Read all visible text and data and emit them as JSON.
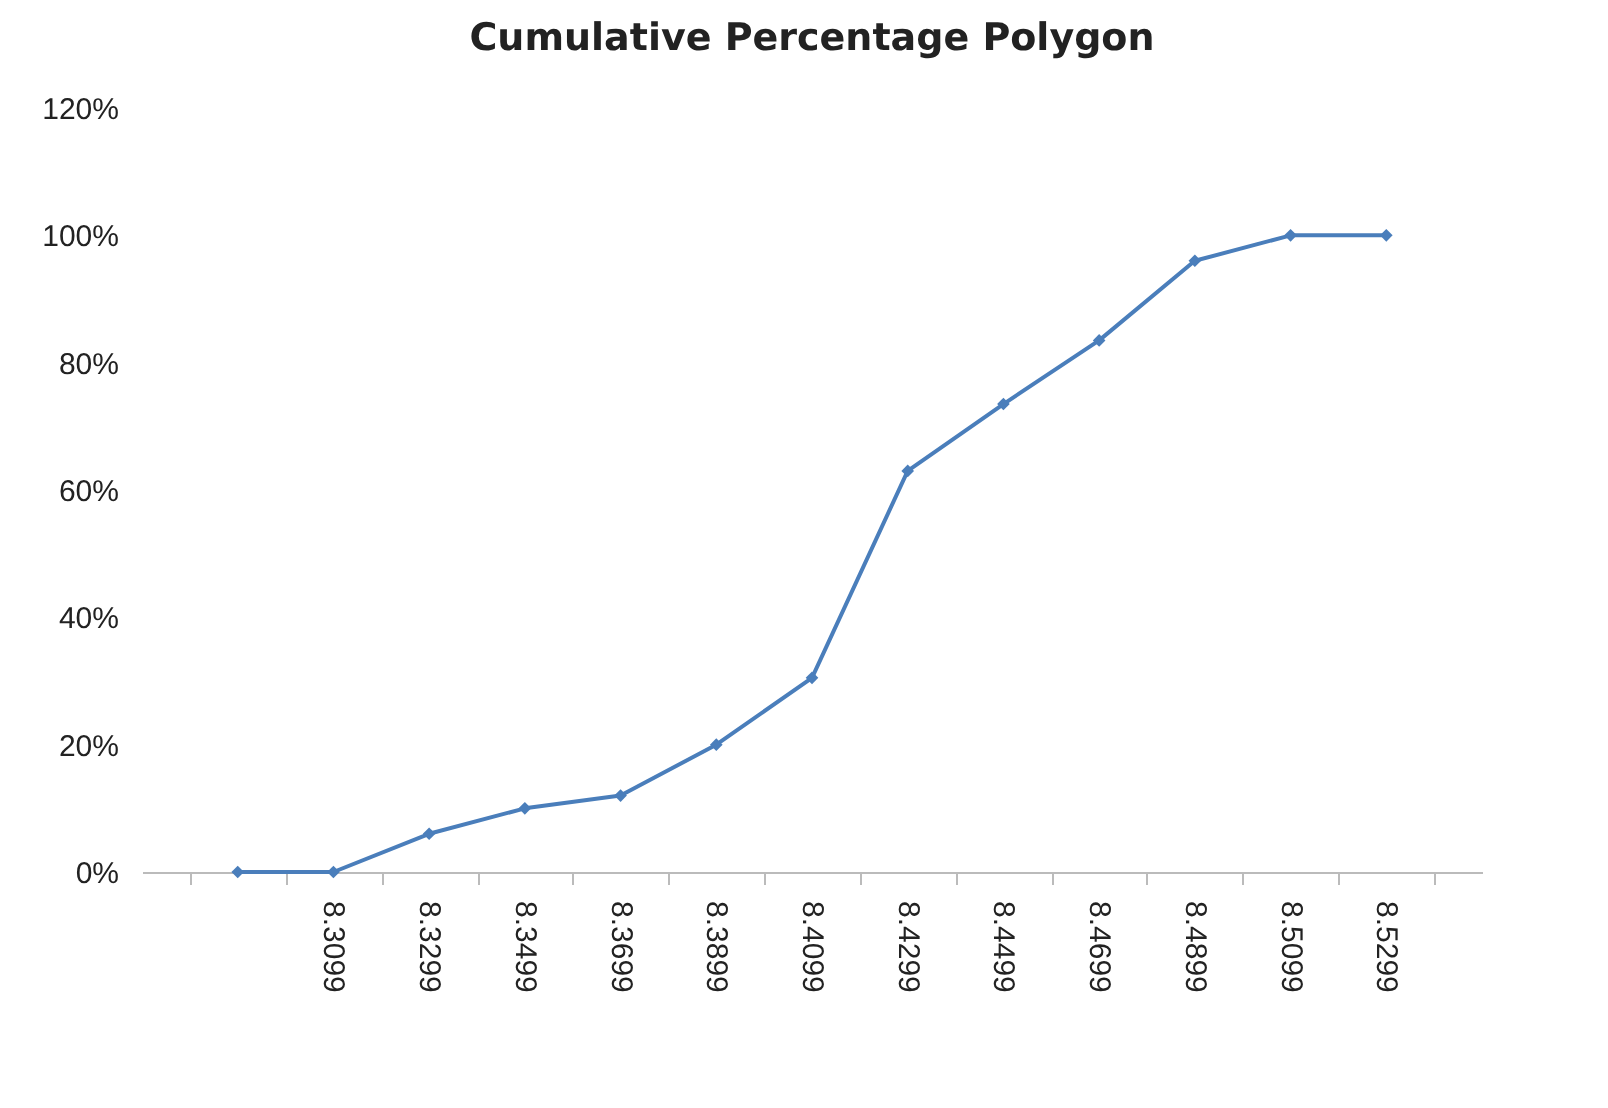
{
  "chart_data": {
    "type": "line",
    "title": "Cumulative Percentage Polygon",
    "categories": [
      null,
      "8.3099",
      "8.3299",
      "8.3499",
      "8.3699",
      "8.3899",
      "8.4099",
      "8.4299",
      "8.4499",
      "8.4699",
      "8.4899",
      "8.5099",
      "8.5299"
    ],
    "series": [
      {
        "color": "#4a7ebb",
        "values": [
          0,
          0,
          6,
          10,
          12,
          20,
          30.5,
          63,
          73.5,
          83.5,
          96,
          100,
          100
        ]
      }
    ],
    "ylim": [
      0,
      120
    ],
    "yticks": [
      {
        "value": 0,
        "label": "0%"
      },
      {
        "value": 20,
        "label": "20%"
      },
      {
        "value": 40,
        "label": "40%"
      },
      {
        "value": 60,
        "label": "60%"
      },
      {
        "value": 80,
        "label": "80%"
      },
      {
        "value": 100,
        "label": "100%"
      },
      {
        "value": 120,
        "label": "120%"
      }
    ],
    "grid": false,
    "marker": "diamond",
    "line_style": "solid"
  }
}
